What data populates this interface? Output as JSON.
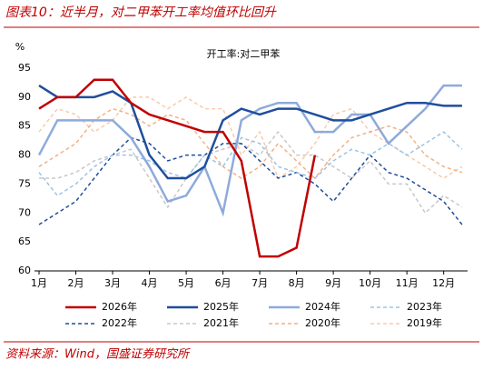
{
  "title": "图表10：近半月，对二甲苯开工率均值环比回升",
  "source": "资料来源：Wind，国盛证券研究所",
  "chart_data": {
    "type": "line",
    "title": "开工率:对二甲苯",
    "y_label": "%",
    "x": [
      1,
      1.5,
      2,
      2.5,
      3,
      3.5,
      4,
      4.5,
      5,
      5.5,
      6,
      6.5,
      7,
      7.5,
      8,
      8.5,
      9,
      9.5,
      10,
      10.5,
      11,
      11.5,
      12,
      12.5
    ],
    "xlim": [
      1,
      12.65
    ],
    "xticks": [
      {
        "value": 1,
        "label": "1月"
      },
      {
        "value": 2,
        "label": "2月"
      },
      {
        "value": 3,
        "label": "3月"
      },
      {
        "value": 4,
        "label": "4月"
      },
      {
        "value": 5,
        "label": "5月"
      },
      {
        "value": 6,
        "label": "6月"
      },
      {
        "value": 7,
        "label": "7月"
      },
      {
        "value": 8,
        "label": "8月"
      },
      {
        "value": 9,
        "label": "9月"
      },
      {
        "value": 10,
        "label": "10月"
      },
      {
        "value": 11,
        "label": "11月"
      },
      {
        "value": 12,
        "label": "12月"
      }
    ],
    "ylim": [
      60,
      95
    ],
    "yticks": [
      60,
      65,
      70,
      75,
      80,
      85,
      90,
      95
    ],
    "series": [
      {
        "name": "2026年",
        "color": "#c00000",
        "dashed": false,
        "values": [
          88,
          90,
          90,
          93,
          93,
          89,
          87,
          86,
          85,
          84,
          84,
          79,
          62.5,
          62.5,
          64,
          80,
          null,
          null,
          null,
          null,
          null,
          null,
          null,
          null
        ]
      },
      {
        "name": "2025年",
        "color": "#1f4e9c",
        "dashed": false,
        "values": [
          92,
          90,
          90,
          90,
          91,
          89,
          80,
          76,
          76,
          78,
          86,
          88,
          87,
          88,
          88,
          87,
          86,
          86,
          87,
          88,
          89,
          89,
          88.5,
          88.5
        ]
      },
      {
        "name": "2024年",
        "color": "#8eaadb",
        "dashed": false,
        "values": [
          80,
          86,
          86,
          86,
          86,
          83,
          78,
          72,
          73,
          78,
          70,
          86,
          88,
          89,
          89,
          84,
          84,
          87,
          87,
          82,
          85,
          88,
          92,
          92
        ]
      },
      {
        "name": "2023年",
        "color": "#9dc3e6",
        "dashed": true,
        "values": [
          77,
          73,
          75,
          78,
          80,
          80,
          79,
          77,
          76,
          80,
          78,
          83,
          82,
          78,
          77,
          76,
          79,
          81,
          80,
          82,
          80,
          82,
          84,
          81
        ]
      },
      {
        "name": "2022年",
        "color": "#1f4e9c",
        "dashed": true,
        "values": [
          68,
          70,
          72,
          76,
          80,
          83,
          82,
          79,
          80,
          80,
          82,
          82,
          79,
          76,
          77,
          75,
          72,
          76,
          80,
          77,
          76,
          74,
          72,
          68
        ]
      },
      {
        "name": "2021年",
        "color": "#c8c8c8",
        "dashed": true,
        "values": [
          76,
          76,
          77,
          79,
          80,
          81,
          76,
          71,
          76,
          80,
          81,
          82,
          80,
          84,
          80,
          80,
          78,
          76,
          79,
          75,
          75,
          70,
          73,
          71
        ]
      },
      {
        "name": "2020年",
        "color": "#f4b183",
        "dashed": true,
        "values": [
          78,
          80,
          82,
          86,
          88,
          87,
          85,
          87,
          86,
          82,
          78,
          76,
          78,
          82,
          79,
          76,
          80,
          83,
          84,
          85,
          84,
          80,
          78,
          77
        ]
      },
      {
        "name": "2019年",
        "color": "#f8cbad",
        "dashed": true,
        "values": [
          84,
          88,
          87,
          84,
          86,
          90,
          90,
          88,
          90,
          88,
          88,
          80,
          84,
          76,
          78,
          82,
          87,
          88,
          84,
          82,
          80,
          78,
          76,
          78
        ]
      }
    ]
  }
}
